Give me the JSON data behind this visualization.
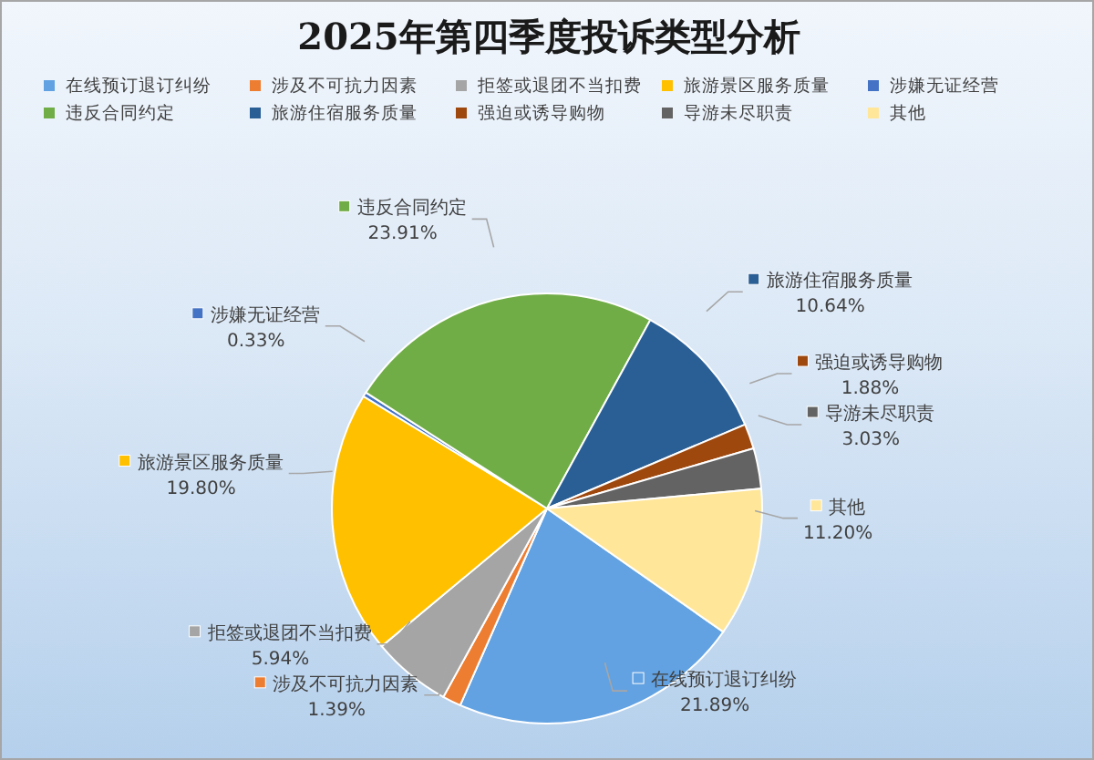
{
  "chart_data": {
    "type": "pie",
    "title": "2025年第四季度投诉类型分析",
    "categories": [
      "在线预订退订纠纷",
      "涉及不可抗力因素",
      "拒签或退团不当扣费",
      "旅游景区服务质量",
      "涉嫌无证经营",
      "违反合同约定",
      "旅游住宿服务质量",
      "强迫或诱导购物",
      "导游未尽职责",
      "其他"
    ],
    "values": [
      21.89,
      1.39,
      5.94,
      19.8,
      0.33,
      23.91,
      10.64,
      1.88,
      3.03,
      11.2
    ],
    "colors": [
      "#62a2e2",
      "#ed7d31",
      "#a5a5a5",
      "#ffc000",
      "#4472c4",
      "#70ad47",
      "#2a5f95",
      "#9e480e",
      "#636363",
      "#ffe699"
    ],
    "value_labels": [
      "21.89%",
      "1.39%",
      "5.94%",
      "19.80%",
      "0.33%",
      "23.91%",
      "10.64%",
      "1.88%",
      "3.03%",
      "11.20%"
    ],
    "legend": "top"
  }
}
